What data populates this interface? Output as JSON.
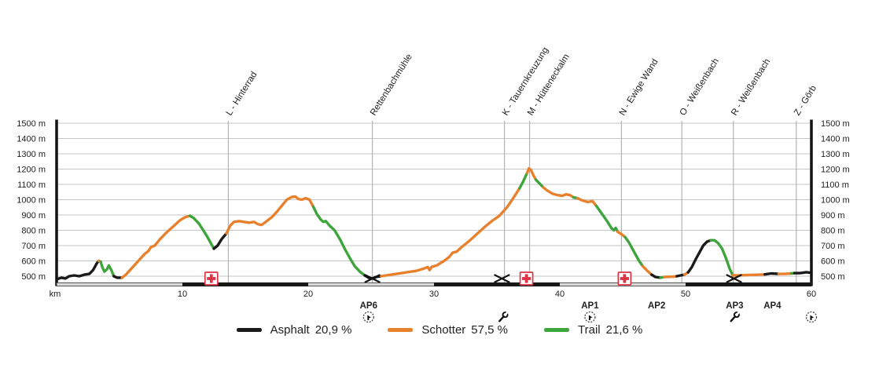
{
  "chart_data": {
    "type": "line",
    "title": "",
    "xlabel": "km",
    "x_range_km": [
      0,
      60
    ],
    "y_range_m": [
      500,
      1500
    ],
    "grid": true,
    "x_axis": {
      "unit_label": "km",
      "ticks": [
        {
          "km": 10,
          "label": "10"
        },
        {
          "km": 20,
          "label": "20"
        },
        {
          "km": 30,
          "label": "30"
        },
        {
          "km": 40,
          "label": "40"
        },
        {
          "km": 50,
          "label": "50"
        },
        {
          "km": 60,
          "label": "60"
        }
      ],
      "scalebar_dark_segments_km": [
        [
          10,
          20
        ],
        [
          30,
          40
        ],
        [
          50,
          60
        ]
      ]
    },
    "y_axis": {
      "ticks": [
        {
          "m": 500,
          "label": "500 m"
        },
        {
          "m": 600,
          "label": "600 m"
        },
        {
          "m": 700,
          "label": "700 m"
        },
        {
          "m": 800,
          "label": "800 m"
        },
        {
          "m": 900,
          "label": "900 m"
        },
        {
          "m": 1000,
          "label": "1000 m"
        },
        {
          "m": 1100,
          "label": "1100 m"
        },
        {
          "m": 1200,
          "label": "1200 m"
        },
        {
          "m": 1300,
          "label": "1300 m"
        },
        {
          "m": 1400,
          "label": "1400 m"
        },
        {
          "m": 1500,
          "label": "1500 m"
        }
      ]
    },
    "waypoints": [
      {
        "km": 13.65,
        "label": "L - Hinterrad"
      },
      {
        "km": 25.1,
        "label": "Rettenbachmühle"
      },
      {
        "km": 35.6,
        "label": "K - Tauernkreuzung"
      },
      {
        "km": 37.6,
        "label": "M - Hütteneckalm"
      },
      {
        "km": 44.9,
        "label": "N - Ewige Wand"
      },
      {
        "km": 49.7,
        "label": "O - Weißenbach"
      },
      {
        "km": 53.8,
        "label": "R - Weißenbach"
      },
      {
        "km": 58.8,
        "label": "Z - Görb"
      }
    ],
    "surfaces": {
      "A": {
        "name": "Asphalt",
        "color": "#1a1a1a"
      },
      "S": {
        "name": "Schotter",
        "color": "#e8812d"
      },
      "T": {
        "name": "Trail",
        "color": "#3ea43c"
      }
    },
    "profile_points_km_m_surface": [
      [
        0,
        480,
        "A"
      ],
      [
        0.4,
        490,
        "A"
      ],
      [
        0.7,
        485,
        "A"
      ],
      [
        1,
        500,
        "A"
      ],
      [
        1.4,
        505,
        "A"
      ],
      [
        1.8,
        500,
        "A"
      ],
      [
        2.2,
        510,
        "A"
      ],
      [
        2.6,
        515,
        "A"
      ],
      [
        2.9,
        540,
        "A"
      ],
      [
        3.2,
        585,
        "A"
      ],
      [
        3.35,
        600,
        "A"
      ],
      [
        3.5,
        595,
        "S"
      ],
      [
        3.65,
        555,
        "T"
      ],
      [
        3.8,
        530,
        "T"
      ],
      [
        4,
        545,
        "T"
      ],
      [
        4.15,
        570,
        "T"
      ],
      [
        4.35,
        540,
        "T"
      ],
      [
        4.55,
        500,
        "T"
      ],
      [
        4.8,
        490,
        "A"
      ],
      [
        5.2,
        490,
        "A"
      ],
      [
        5.5,
        510,
        "S"
      ],
      [
        6,
        555,
        "S"
      ],
      [
        6.5,
        600,
        "S"
      ],
      [
        7,
        645,
        "S"
      ],
      [
        7.3,
        665,
        "S"
      ],
      [
        7.5,
        690,
        "S"
      ],
      [
        7.8,
        700,
        "S"
      ],
      [
        8.2,
        740,
        "S"
      ],
      [
        8.6,
        775,
        "S"
      ],
      [
        9,
        805,
        "S"
      ],
      [
        9.4,
        835,
        "S"
      ],
      [
        9.8,
        865,
        "S"
      ],
      [
        10.2,
        885,
        "S"
      ],
      [
        10.6,
        895,
        "S"
      ],
      [
        10.9,
        880,
        "T"
      ],
      [
        11.3,
        845,
        "T"
      ],
      [
        11.7,
        795,
        "T"
      ],
      [
        12,
        755,
        "T"
      ],
      [
        12.3,
        710,
        "T"
      ],
      [
        12.5,
        680,
        "T"
      ],
      [
        12.8,
        700,
        "A"
      ],
      [
        13.1,
        740,
        "A"
      ],
      [
        13.5,
        780,
        "A"
      ],
      [
        13.8,
        830,
        "S"
      ],
      [
        14.1,
        855,
        "S"
      ],
      [
        14.5,
        860,
        "S"
      ],
      [
        14.9,
        855,
        "S"
      ],
      [
        15.3,
        850,
        "S"
      ],
      [
        15.7,
        855,
        "S"
      ],
      [
        16,
        840,
        "S"
      ],
      [
        16.3,
        835,
        "S"
      ],
      [
        16.7,
        860,
        "S"
      ],
      [
        17.1,
        885,
        "S"
      ],
      [
        17.5,
        920,
        "S"
      ],
      [
        17.9,
        960,
        "S"
      ],
      [
        18.3,
        1000,
        "S"
      ],
      [
        18.7,
        1018,
        "S"
      ],
      [
        19,
        1020,
        "S"
      ],
      [
        19.2,
        1005,
        "S"
      ],
      [
        19.5,
        1000,
        "S"
      ],
      [
        19.8,
        1010,
        "S"
      ],
      [
        20.1,
        1000,
        "S"
      ],
      [
        20.4,
        955,
        "S"
      ],
      [
        20.7,
        905,
        "T"
      ],
      [
        21,
        870,
        "T"
      ],
      [
        21.2,
        855,
        "T"
      ],
      [
        21.4,
        860,
        "T"
      ],
      [
        21.7,
        830,
        "T"
      ],
      [
        22.1,
        800,
        "T"
      ],
      [
        22.5,
        745,
        "T"
      ],
      [
        22.9,
        680,
        "T"
      ],
      [
        23.3,
        620,
        "T"
      ],
      [
        23.7,
        565,
        "T"
      ],
      [
        24.1,
        530,
        "T"
      ],
      [
        24.5,
        505,
        "T"
      ],
      [
        24.8,
        490,
        "A"
      ],
      [
        25.1,
        485,
        "A"
      ],
      [
        25.4,
        495,
        "A"
      ],
      [
        25.8,
        500,
        "A"
      ],
      [
        26.2,
        505,
        "S"
      ],
      [
        27,
        515,
        "S"
      ],
      [
        27.8,
        525,
        "S"
      ],
      [
        28.6,
        535,
        "S"
      ],
      [
        29.2,
        550,
        "S"
      ],
      [
        29.5,
        560,
        "S"
      ],
      [
        29.65,
        540,
        "S"
      ],
      [
        29.8,
        560,
        "S"
      ],
      [
        30.2,
        570,
        "S"
      ],
      [
        30.8,
        600,
        "S"
      ],
      [
        31.2,
        625,
        "S"
      ],
      [
        31.5,
        655,
        "S"
      ],
      [
        31.8,
        660,
        "S"
      ],
      [
        32.2,
        690,
        "S"
      ],
      [
        32.8,
        730,
        "S"
      ],
      [
        33.4,
        775,
        "S"
      ],
      [
        34,
        820,
        "S"
      ],
      [
        34.6,
        860,
        "S"
      ],
      [
        35.2,
        895,
        "S"
      ],
      [
        35.8,
        950,
        "S"
      ],
      [
        36.3,
        1010,
        "S"
      ],
      [
        36.8,
        1075,
        "S"
      ],
      [
        37.1,
        1120,
        "T"
      ],
      [
        37.4,
        1175,
        "T"
      ],
      [
        37.55,
        1205,
        "S"
      ],
      [
        37.7,
        1195,
        "S"
      ],
      [
        37.9,
        1160,
        "S"
      ],
      [
        38.1,
        1130,
        "S"
      ],
      [
        38.4,
        1105,
        "T"
      ],
      [
        38.7,
        1080,
        "T"
      ],
      [
        39,
        1060,
        "S"
      ],
      [
        39.4,
        1040,
        "S"
      ],
      [
        39.8,
        1030,
        "S"
      ],
      [
        40.2,
        1025,
        "S"
      ],
      [
        40.5,
        1035,
        "S"
      ],
      [
        40.8,
        1030,
        "S"
      ],
      [
        41.1,
        1015,
        "S"
      ],
      [
        41.4,
        1010,
        "T"
      ],
      [
        41.8,
        995,
        "S"
      ],
      [
        42.2,
        985,
        "S"
      ],
      [
        42.6,
        990,
        "S"
      ],
      [
        42.9,
        960,
        "S"
      ],
      [
        43.2,
        925,
        "T"
      ],
      [
        43.5,
        890,
        "T"
      ],
      [
        43.8,
        855,
        "T"
      ],
      [
        44.1,
        815,
        "T"
      ],
      [
        44.3,
        800,
        "T"
      ],
      [
        44.45,
        815,
        "T"
      ],
      [
        44.6,
        790,
        "T"
      ],
      [
        44.9,
        775,
        "S"
      ],
      [
        45.2,
        755,
        "S"
      ],
      [
        45.5,
        720,
        "T"
      ],
      [
        45.9,
        660,
        "T"
      ],
      [
        46.3,
        600,
        "T"
      ],
      [
        46.6,
        565,
        "T"
      ],
      [
        46.9,
        540,
        "S"
      ],
      [
        47.3,
        510,
        "S"
      ],
      [
        47.6,
        495,
        "A"
      ],
      [
        48,
        490,
        "A"
      ],
      [
        48.3,
        495,
        "T"
      ],
      [
        49,
        497,
        "S"
      ],
      [
        49.3,
        500,
        "S"
      ],
      [
        49.6,
        505,
        "A"
      ],
      [
        49.9,
        510,
        "A"
      ],
      [
        50.2,
        525,
        "S"
      ],
      [
        50.5,
        560,
        "A"
      ],
      [
        50.8,
        610,
        "A"
      ],
      [
        51.1,
        655,
        "A"
      ],
      [
        51.4,
        700,
        "A"
      ],
      [
        51.7,
        725,
        "A"
      ],
      [
        52,
        735,
        "A"
      ],
      [
        52.3,
        735,
        "T"
      ],
      [
        52.6,
        715,
        "T"
      ],
      [
        52.9,
        680,
        "T"
      ],
      [
        53.2,
        620,
        "T"
      ],
      [
        53.5,
        550,
        "T"
      ],
      [
        53.75,
        505,
        "T"
      ],
      [
        54.2,
        505,
        "S"
      ],
      [
        55,
        508,
        "S"
      ],
      [
        55.8,
        510,
        "S"
      ],
      [
        56.3,
        512,
        "S"
      ],
      [
        56.8,
        518,
        "A"
      ],
      [
        57.4,
        515,
        "A"
      ],
      [
        57.9,
        515,
        "S"
      ],
      [
        58.4,
        518,
        "S"
      ],
      [
        58.65,
        520,
        "T"
      ],
      [
        59.1,
        520,
        "A"
      ],
      [
        59.6,
        526,
        "A"
      ],
      [
        60,
        522,
        "A"
      ]
    ],
    "markers": {
      "first_aid_km": [
        12.3,
        37.35,
        45.15
      ],
      "crossed_tools_km": [
        25.1,
        35.4,
        53.85
      ]
    },
    "checkpoints": [
      {
        "km": 24.8,
        "label": "AP6",
        "icon": "circle-figure"
      },
      {
        "km": 35.5,
        "label": "",
        "icon": "wrench"
      },
      {
        "km": 42.4,
        "label": "AP1",
        "icon": "circle-figure"
      },
      {
        "km": 47.7,
        "label": "AP2",
        "icon": ""
      },
      {
        "km": 53.9,
        "label": "AP3",
        "icon": "wrench"
      },
      {
        "km": 56.9,
        "label": "AP4",
        "icon": ""
      },
      {
        "km": 60.0,
        "label": "",
        "icon": "circle-figure"
      }
    ],
    "colors": {
      "asphalt": "#1a1a1a",
      "schotter": "#e8812d",
      "trail": "#3ea43c",
      "gridline": "#c6c6c6",
      "waypoint_line": "#b3b3b3",
      "axis": "#111111",
      "first_aid_red": "#dd3344",
      "scalebar_light": "#d8d8d8",
      "scalebar_dark": "#161616"
    }
  },
  "legend": {
    "items": [
      {
        "name": "Asphalt",
        "pct": "20,9 %",
        "color": "#1a1a1a"
      },
      {
        "name": "Schotter",
        "pct": "57,5 %",
        "color": "#e8812d"
      },
      {
        "name": "Trail",
        "pct": "21,6 %",
        "color": "#3ea43c"
      }
    ]
  }
}
